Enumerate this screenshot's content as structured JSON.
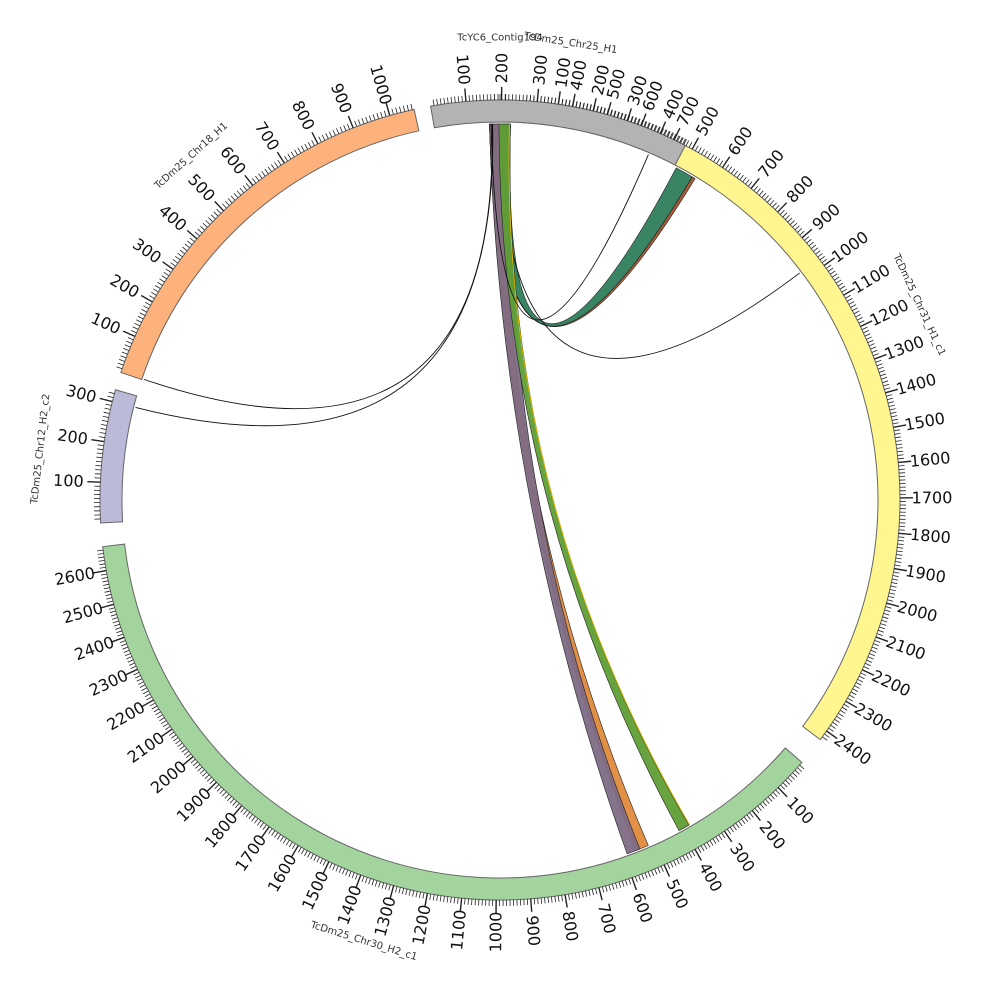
{
  "diagram": {
    "type": "circos",
    "colors": {
      "tick": "#222222",
      "ideogram_stroke": "#666666",
      "link_stroke": "#222222",
      "single_link_stroke": "#111111"
    },
    "chromosomes": [
      {
        "id": "contig194",
        "label": "TcYC6_Contig194",
        "length": 40,
        "color": "#a6cee3",
        "ticks": []
      },
      {
        "id": "chr31",
        "label": "TcDm25_Chr31_H1_c1",
        "length": 2430,
        "color": "#fff68f",
        "ticks": [
          100,
          200,
          300,
          400,
          500,
          600,
          700,
          800,
          900,
          1000,
          1100,
          1200,
          1300,
          1400,
          1500,
          1600,
          1700,
          1800,
          1900,
          2000,
          2100,
          2200,
          2300,
          2400
        ]
      },
      {
        "id": "chr30",
        "label": "TcDm25_Chr30_H2_c1",
        "length": 2670,
        "color": "#a3d49e",
        "ticks": [
          100,
          200,
          300,
          400,
          500,
          600,
          700,
          800,
          900,
          1000,
          1100,
          1200,
          1300,
          1400,
          1500,
          1600,
          1700,
          1800,
          1900,
          2000,
          2100,
          2200,
          2300,
          2400,
          2500,
          2600
        ]
      },
      {
        "id": "chr12",
        "label": "TcDm25_Chr12_H2_c2",
        "length": 330,
        "color": "#bcbad9",
        "ticks": [
          100,
          200,
          300
        ]
      },
      {
        "id": "chr18",
        "label": "TcDm25_Chr18_H1",
        "length": 1065,
        "color": "#fdb27c",
        "ticks": [
          100,
          200,
          300,
          400,
          500,
          600,
          700,
          800,
          900,
          1000
        ]
      },
      {
        "id": "chr25",
        "label": "TcDm25_Chr25_H1",
        "length": 735,
        "color": "#b3b3b3",
        "ticks": [
          100,
          200,
          300,
          400,
          500,
          600,
          700
        ]
      }
    ],
    "links": [
      {
        "from": "contig194",
        "from_start": 0,
        "from_end": 40,
        "to": "chr31",
        "to_start": 485,
        "to_end": 540,
        "color": "#2e7d5b"
      },
      {
        "from": "contig194",
        "from_start": 0,
        "from_end": 3,
        "to": "chr31",
        "to_start": 540,
        "to_end": 550,
        "color": "#a0522d"
      },
      {
        "from": "contig194",
        "from_start": 20,
        "from_end": 21,
        "to": "chr31",
        "to_start": 975,
        "to_end": 978,
        "color": "#111111"
      },
      {
        "from": "contig194",
        "from_start": 0,
        "from_end": 20,
        "to": "chr30",
        "to_start": 520,
        "to_end": 560,
        "color": "#e08a3c"
      },
      {
        "from": "contig194",
        "from_start": 0,
        "from_end": 40,
        "to": "chr30",
        "to_start": 548,
        "to_end": 590,
        "color": "#7e6a85"
      },
      {
        "from": "contig194",
        "from_start": 18,
        "from_end": 40,
        "to": "chr30",
        "to_start": 380,
        "to_end": 415,
        "color": "#5f9e35"
      },
      {
        "from": "contig194",
        "from_start": 38,
        "from_end": 40,
        "to": "chr30",
        "to_start": 378,
        "to_end": 382,
        "color": "#e6b800"
      },
      {
        "from": "contig194",
        "from_start": 6,
        "from_end": 7,
        "to": "chr12",
        "to_start": 300,
        "to_end": 302,
        "color": "#111111"
      },
      {
        "from": "contig194",
        "from_start": 5,
        "from_end": 6,
        "to": "chr18",
        "to_start": 2,
        "to_end": 4,
        "color": "#111111"
      },
      {
        "from": "contig194",
        "from_start": 3,
        "from_end": 4,
        "to": "chr25",
        "to_start": 650,
        "to_end": 652,
        "color": "#111111"
      }
    ]
  }
}
